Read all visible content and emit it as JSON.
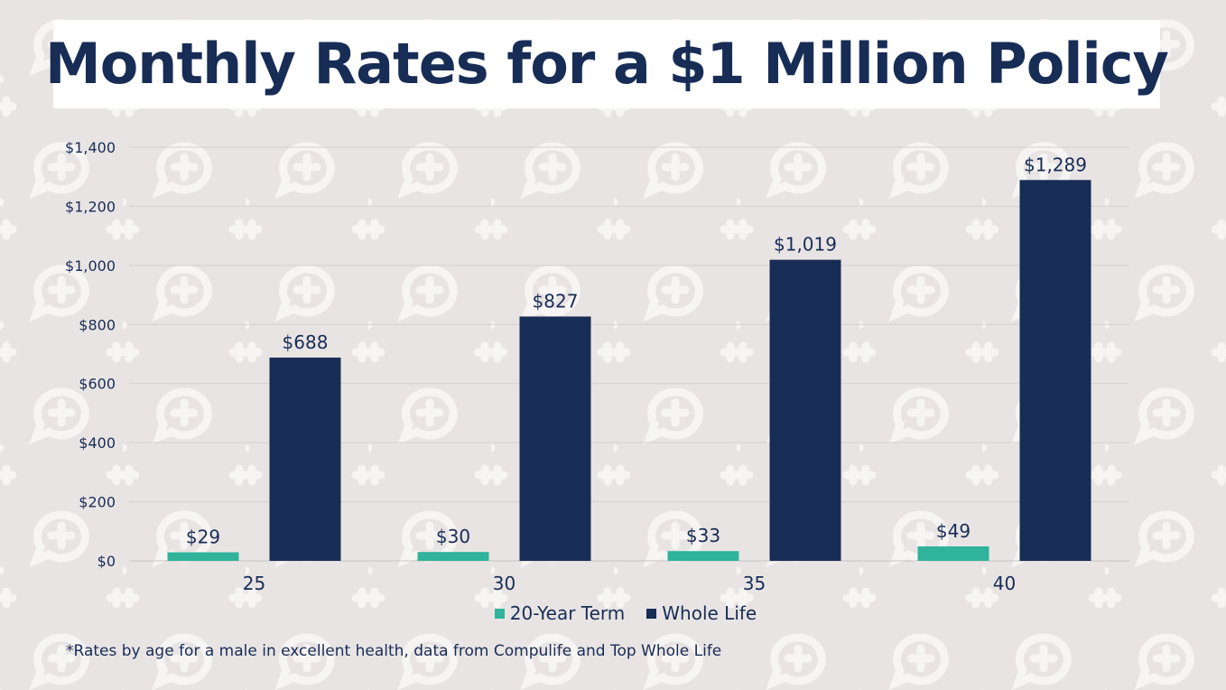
{
  "title": "Monthly Rates for a $1 Million Policy",
  "footnote": "*Rates by age for a male in excellent health, data from Compulife and Top Whole Life",
  "colors": {
    "background": "#e9e4e4",
    "pattern": "#f7f4f4",
    "title_text": "#172d55",
    "term": "#2fb39b",
    "whole_life": "#172d55",
    "gridline": "#d4d0d0"
  },
  "chart_data": {
    "type": "bar",
    "title": "Monthly Rates for a $1 Million Policy",
    "xlabel": "",
    "ylabel": "",
    "categories": [
      "25",
      "30",
      "35",
      "40"
    ],
    "series": [
      {
        "name": "20-Year Term",
        "values": [
          29,
          30,
          33,
          49
        ],
        "labels": [
          "$29",
          "$30",
          "$33",
          "$49"
        ],
        "color": "#2fb39b"
      },
      {
        "name": "Whole Life",
        "values": [
          688,
          827,
          1019,
          1289
        ],
        "labels": [
          "$688",
          "$827",
          "$1,019",
          "$1,289"
        ],
        "color": "#172d55"
      }
    ],
    "ylim": [
      0,
      1400
    ],
    "yticks": [
      0,
      200,
      400,
      600,
      800,
      1000,
      1200,
      1400
    ],
    "ytick_labels": [
      "$0",
      "$200",
      "$400",
      "$600",
      "$800",
      "$1,000",
      "$1,200",
      "$1,400"
    ],
    "grid": true,
    "legend": "bottom-center"
  }
}
